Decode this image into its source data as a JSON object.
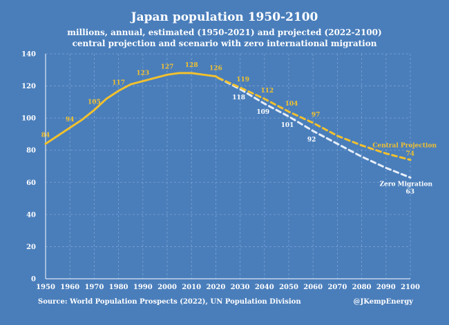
{
  "chart_data": {
    "type": "line",
    "title": "Japan population 1950-2100",
    "subtitle_lines": [
      "millions, annual, estimated (1950-2021) and projected (2022-2100)",
      "central projection and scenario with zero international migration"
    ],
    "xlim": [
      1950,
      2100
    ],
    "ylim": [
      0,
      140
    ],
    "x_ticks": [
      1950,
      1960,
      1970,
      1980,
      1990,
      2000,
      2010,
      2020,
      2030,
      2040,
      2050,
      2060,
      2070,
      2080,
      2090,
      2100
    ],
    "y_ticks": [
      0,
      20,
      40,
      60,
      80,
      100,
      120,
      140
    ],
    "grid": true,
    "colors": {
      "background": "#4a7ebb",
      "estimate": "#f2c12e",
      "central": "#f2c12e",
      "zero": "#e6eef8"
    },
    "series": [
      {
        "x": [
          1950,
          1955,
          1960,
          1965,
          1970,
          1975,
          1980,
          1985,
          1990,
          1995,
          2000,
          2005,
          2010,
          2015,
          2020,
          2021
        ],
        "y": [
          84,
          89,
          94,
          99,
          105,
          112,
          117,
          121,
          123,
          125,
          127,
          128,
          128,
          127,
          126,
          125
        ]
      },
      {
        "name": "Central Projection",
        "x": [
          2021,
          2030,
          2040,
          2050,
          2060,
          2070,
          2080,
          2090,
          2100
        ],
        "y": [
          125,
          119,
          112,
          104,
          97,
          89,
          83,
          78,
          74
        ]
      },
      {
        "name": "Zero Migration",
        "x": [
          2021,
          2030,
          2040,
          2050,
          2060,
          2070,
          2080,
          2090,
          2100
        ],
        "y": [
          125,
          118,
          109,
          101,
          92,
          84,
          76,
          69,
          63
        ]
      }
    ],
    "point_labels": [
      {
        "x": 1950,
        "y": 84,
        "text": "84",
        "series": "estimate"
      },
      {
        "x": 1960,
        "y": 94,
        "text": "94",
        "series": "estimate"
      },
      {
        "x": 1970,
        "y": 105,
        "text": "105",
        "series": "estimate"
      },
      {
        "x": 1980,
        "y": 117,
        "text": "117",
        "series": "estimate"
      },
      {
        "x": 1990,
        "y": 123,
        "text": "123",
        "series": "estimate"
      },
      {
        "x": 2000,
        "y": 127,
        "text": "127",
        "series": "estimate"
      },
      {
        "x": 2010,
        "y": 128,
        "text": "128",
        "series": "estimate"
      },
      {
        "x": 2020,
        "y": 126,
        "text": "126",
        "series": "estimate"
      },
      {
        "x": 2030,
        "y": 119,
        "text": "119",
        "series": "central"
      },
      {
        "x": 2040,
        "y": 112,
        "text": "112",
        "series": "central"
      },
      {
        "x": 2050,
        "y": 104,
        "text": "104",
        "series": "central"
      },
      {
        "x": 2060,
        "y": 97,
        "text": "97",
        "series": "central"
      },
      {
        "x": 2030,
        "y": 118,
        "text": "118",
        "series": "zero"
      },
      {
        "x": 2040,
        "y": 109,
        "text": "109",
        "series": "zero"
      },
      {
        "x": 2050,
        "y": 101,
        "text": "101",
        "series": "zero"
      },
      {
        "x": 2060,
        "y": 92,
        "text": "92",
        "series": "zero"
      }
    ],
    "end_labels": [
      {
        "series": "central",
        "name": "Central Projection",
        "value": "74"
      },
      {
        "series": "zero",
        "name": "Zero Migration",
        "value": "63"
      }
    ],
    "source": "Source: World Population Prospects (2022), UN Population Division",
    "credit": "@JKempEnergy"
  }
}
